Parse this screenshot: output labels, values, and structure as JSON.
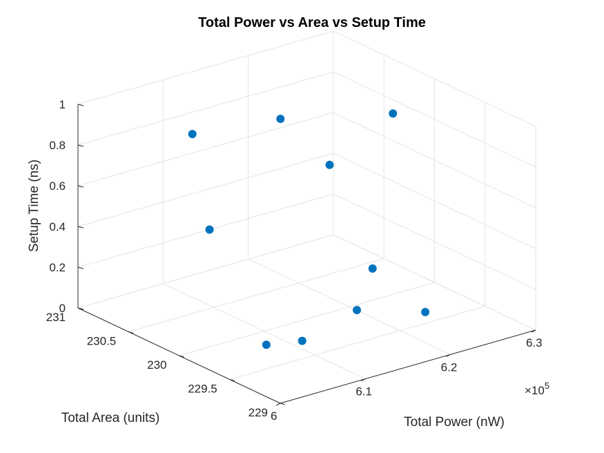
{
  "chart_data": {
    "type": "scatter",
    "title": "Total Power vs Area vs Setup Time",
    "xlabel": "Total Power (nW)",
    "ylabel": "Total Area (units)",
    "zlabel": "Setup Time (ns)",
    "x_exponent_label": "×10",
    "x_exponent_value": "5",
    "xlim": [
      600000,
      630000
    ],
    "ylim": [
      229,
      231
    ],
    "zlim": [
      0,
      1
    ],
    "x_ticks": [
      {
        "value": 600000,
        "label": "6"
      },
      {
        "value": 610000,
        "label": "6.1"
      },
      {
        "value": 620000,
        "label": "6.2"
      },
      {
        "value": 630000,
        "label": "6.3"
      }
    ],
    "y_ticks": [
      {
        "value": 229,
        "label": "229"
      },
      {
        "value": 229.5,
        "label": "229.5"
      },
      {
        "value": 230,
        "label": "230"
      },
      {
        "value": 230.5,
        "label": "230.5"
      },
      {
        "value": 231,
        "label": "231"
      }
    ],
    "z_ticks": [
      {
        "value": 0,
        "label": "0"
      },
      {
        "value": 0.2,
        "label": "0.2"
      },
      {
        "value": 0.4,
        "label": "0.4"
      },
      {
        "value": 0.6,
        "label": "0.6"
      },
      {
        "value": 0.8,
        "label": "0.8"
      },
      {
        "value": 1,
        "label": "1"
      }
    ],
    "grid": true,
    "marker_color": "#0072BD",
    "points": [
      {
        "x": 604900,
        "y": 229.55,
        "z": 0.1
      },
      {
        "x": 622000,
        "y": 230.85,
        "z": 0.7
      },
      {
        "x": 606900,
        "y": 230.45,
        "z": 0.9
      },
      {
        "x": 609000,
        "y": 229.0,
        "z": 0.35
      },
      {
        "x": 615300,
        "y": 229.8,
        "z": 0.8
      },
      {
        "x": 609700,
        "y": 229.6,
        "z": 0.05
      },
      {
        "x": 615000,
        "y": 229.35,
        "z": 0.4
      },
      {
        "x": 610700,
        "y": 230.6,
        "z": 0.35
      },
      {
        "x": 620000,
        "y": 229.25,
        "z": 0.15
      },
      {
        "x": 626300,
        "y": 230.1,
        "z": 0.85
      }
    ]
  }
}
